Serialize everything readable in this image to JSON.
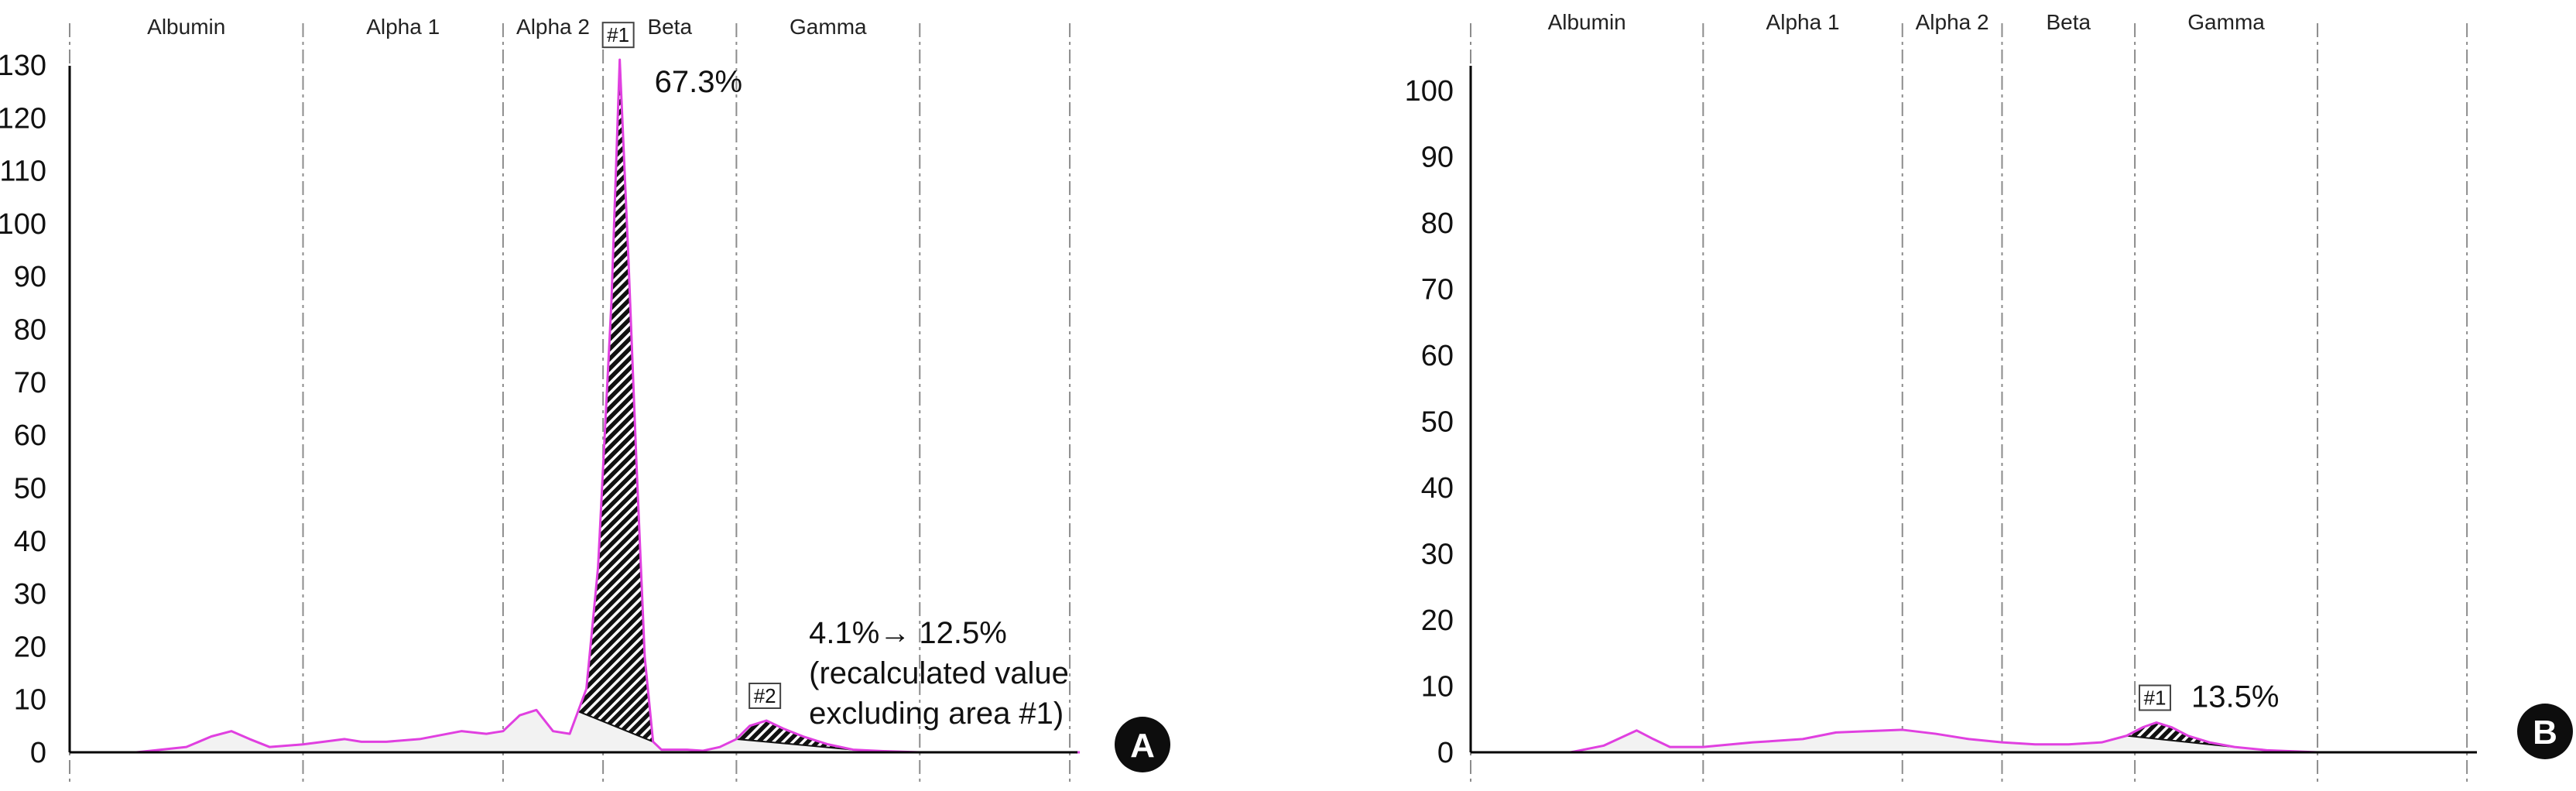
{
  "chart_data": [
    {
      "panel_label": "A",
      "type": "area",
      "fractions": [
        "Albumin",
        "Alpha 1",
        "Alpha 2",
        "Beta",
        "Gamma"
      ],
      "fraction_boundaries_x": [
        0,
        14,
        26,
        32,
        40,
        51,
        60
      ],
      "xlim": [
        0,
        60.6
      ],
      "ylim": [
        0,
        136
      ],
      "yticks": [
        0,
        10,
        20,
        30,
        40,
        50,
        60,
        70,
        80,
        90,
        100,
        110,
        120,
        130
      ],
      "series": [
        {
          "x": [
            0,
            4,
            7,
            8.5,
            9.7,
            10.8,
            12,
            14,
            16.5,
            17.5,
            19,
            21,
            23.5,
            25,
            26,
            27,
            28,
            29,
            30,
            31,
            31.7,
            32.5,
            33,
            33.5,
            34,
            34.5,
            35,
            35.5,
            36,
            37,
            38,
            39,
            40,
            40.8,
            41.8,
            42.8,
            44,
            45.5,
            47,
            49,
            51,
            55,
            60,
            60.6
          ],
          "y": [
            0,
            0,
            1,
            3,
            4,
            2.5,
            1,
            1.5,
            2.5,
            2,
            2,
            2.5,
            4,
            3.5,
            4,
            7,
            8,
            4,
            3.5,
            12,
            35,
            85,
            131,
            95,
            55,
            18,
            2,
            0.5,
            0.5,
            0.5,
            0.3,
            1,
            2.5,
            5,
            6,
            4.5,
            3,
            1.5,
            0.5,
            0.2,
            0,
            0,
            0,
            0
          ]
        }
      ],
      "shaded_peaks": [
        {
          "tag": "#1",
          "x_range": [
            30.5,
            35
          ],
          "percent_label": "67.3%"
        },
        {
          "tag": "#2",
          "x_range": [
            40,
            47
          ],
          "percent_label": "4.1%→ 12.5%",
          "note_lines": [
            "(recalculated value",
            "excluding area #1)"
          ]
        }
      ]
    },
    {
      "panel_label": "B",
      "type": "area",
      "fractions": [
        "Albumin",
        "Alpha 1",
        "Alpha 2",
        "Beta",
        "Gamma"
      ],
      "fraction_boundaries_x": [
        0,
        14,
        26,
        32,
        40,
        51,
        60
      ],
      "xlim": [
        0,
        60.6
      ],
      "ylim": [
        0,
        104
      ],
      "yticks": [
        0,
        10,
        20,
        30,
        40,
        50,
        60,
        70,
        80,
        90,
        100
      ],
      "series": [
        {
          "x": [
            0,
            6,
            8,
            9.3,
            10,
            11,
            12,
            14,
            17,
            20,
            22,
            24,
            26,
            28,
            30,
            32,
            34,
            36,
            38,
            39.5,
            40.5,
            41.3,
            42.2,
            43.2,
            44.5,
            46,
            48,
            51,
            55,
            60,
            60.6
          ],
          "y": [
            0,
            0,
            1,
            2.5,
            3.3,
            2,
            0.8,
            0.8,
            1.5,
            2,
            3,
            3.2,
            3.4,
            2.8,
            2,
            1.5,
            1.2,
            1.2,
            1.5,
            2.5,
            3.8,
            4.5,
            3.8,
            2.5,
            1.5,
            0.8,
            0.3,
            0,
            0,
            0,
            0
          ]
        }
      ],
      "shaded_peaks": [
        {
          "tag": "#1",
          "x_range": [
            39.5,
            46
          ],
          "percent_label": "13.5%"
        }
      ]
    }
  ]
}
